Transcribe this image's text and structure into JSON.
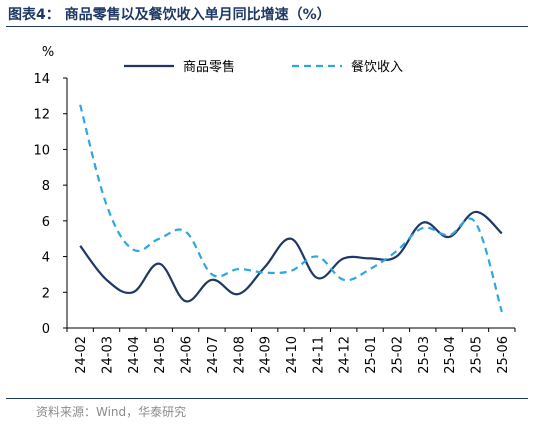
{
  "figure": {
    "title": "图表4： 商品零售以及餐饮收入单月同比增速（%）",
    "source": "资料来源：Wind，华泰研究"
  },
  "colors": {
    "series_1": "#1f3864",
    "series_2": "#2ea7e0",
    "axis": "#000000",
    "title": "#1f3864"
  },
  "chart_data": {
    "type": "line",
    "unit_label": "%",
    "ylim": [
      0,
      14
    ],
    "yticks": [
      0,
      2,
      4,
      6,
      8,
      10,
      12,
      14
    ],
    "grid": false,
    "legend_position": "top",
    "categories": [
      "24-02",
      "24-03",
      "24-04",
      "24-05",
      "24-06",
      "24-07",
      "24-08",
      "24-09",
      "24-10",
      "24-11",
      "24-12",
      "25-01",
      "25-02",
      "25-03",
      "25-04",
      "25-05",
      "25-06"
    ],
    "series": [
      {
        "name": "商品零售",
        "style": "solid",
        "values": [
          4.6,
          2.7,
          2.0,
          3.6,
          1.5,
          2.7,
          1.9,
          3.4,
          5.0,
          2.8,
          3.9,
          3.9,
          4.0,
          5.9,
          5.1,
          6.5,
          5.3
        ]
      },
      {
        "name": "餐饮收入",
        "style": "dashed",
        "values": [
          12.5,
          6.9,
          4.4,
          5.0,
          5.4,
          3.0,
          3.3,
          3.1,
          3.2,
          4.0,
          2.7,
          3.3,
          4.3,
          5.6,
          5.2,
          5.9,
          0.9
        ]
      }
    ]
  }
}
